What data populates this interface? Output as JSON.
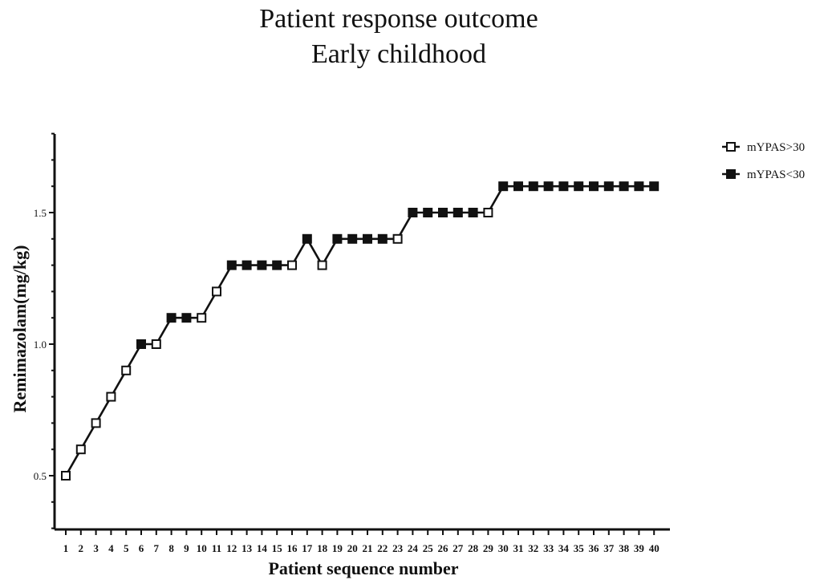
{
  "chart_data": {
    "type": "line",
    "title": "Patient response outcome",
    "subtitle": "Early childhood",
    "xlabel": "Patient sequence number",
    "ylabel": "Remimazolam(mg/kg)",
    "ylim": [
      0.3,
      1.8
    ],
    "yticks": [
      0.5,
      1.0,
      1.5
    ],
    "ytick_labels": [
      "0.5",
      "1.0",
      "1.5"
    ],
    "x": [
      1,
      2,
      3,
      4,
      5,
      6,
      7,
      8,
      9,
      10,
      11,
      12,
      13,
      14,
      15,
      16,
      17,
      18,
      19,
      20,
      21,
      22,
      23,
      24,
      25,
      26,
      27,
      28,
      29,
      30,
      31,
      32,
      33,
      34,
      35,
      36,
      37,
      38,
      39,
      40
    ],
    "values": [
      0.5,
      0.6,
      0.7,
      0.8,
      0.9,
      1.0,
      1.0,
      1.1,
      1.1,
      1.1,
      1.2,
      1.3,
      1.3,
      1.3,
      1.3,
      1.3,
      1.4,
      1.3,
      1.4,
      1.4,
      1.4,
      1.4,
      1.4,
      1.5,
      1.5,
      1.5,
      1.5,
      1.5,
      1.5,
      1.6,
      1.6,
      1.6,
      1.6,
      1.6,
      1.6,
      1.6,
      1.6,
      1.6,
      1.6,
      1.6
    ],
    "response": [
      "open",
      "open",
      "open",
      "open",
      "open",
      "filled",
      "open",
      "filled",
      "filled",
      "open",
      "open",
      "filled",
      "filled",
      "filled",
      "filled",
      "open",
      "filled",
      "open",
      "filled",
      "filled",
      "filled",
      "filled",
      "open",
      "filled",
      "filled",
      "filled",
      "filled",
      "filled",
      "open",
      "filled",
      "filled",
      "filled",
      "filled",
      "filled",
      "filled",
      "filled",
      "filled",
      "filled",
      "filled",
      "filled"
    ],
    "legend": [
      {
        "key": "open",
        "label": "mYPAS>30"
      },
      {
        "key": "filled",
        "label": "mYPAS<30"
      }
    ],
    "legend_position": "top-right",
    "grid": false
  }
}
